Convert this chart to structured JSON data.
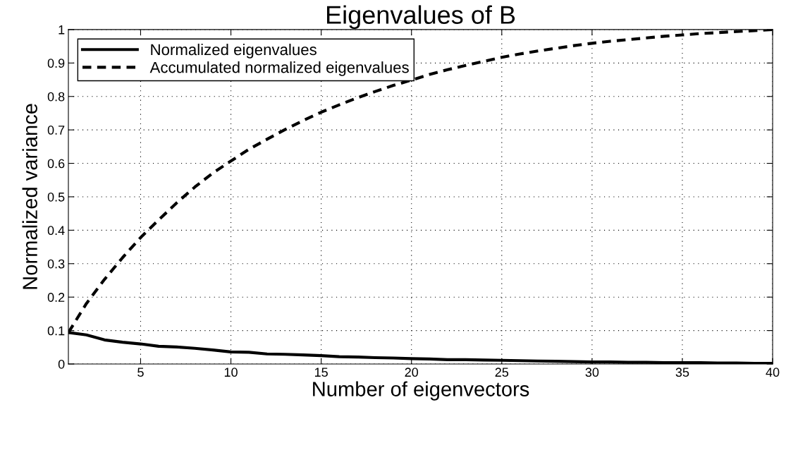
{
  "chart_data": {
    "type": "line",
    "title": "Eigenvalues of B",
    "xlabel": "Number of eigenvectors",
    "ylabel": "Normalized variance",
    "x": [
      1,
      2,
      3,
      4,
      5,
      6,
      7,
      8,
      9,
      10,
      11,
      12,
      13,
      14,
      15,
      16,
      17,
      18,
      19,
      20,
      21,
      22,
      23,
      24,
      25,
      26,
      27,
      28,
      29,
      30,
      31,
      32,
      33,
      34,
      35,
      36,
      37,
      38,
      39,
      40
    ],
    "series": [
      {
        "name": "Normalized eigenvalues",
        "color": "#000000",
        "line_style": "solid",
        "values": [
          0.094,
          0.087,
          0.072,
          0.065,
          0.06,
          0.053,
          0.051,
          0.047,
          0.042,
          0.036,
          0.035,
          0.03,
          0.029,
          0.027,
          0.025,
          0.022,
          0.021,
          0.019,
          0.018,
          0.016,
          0.015,
          0.013,
          0.013,
          0.012,
          0.011,
          0.01,
          0.009,
          0.008,
          0.007,
          0.006,
          0.006,
          0.005,
          0.005,
          0.004,
          0.004,
          0.004,
          0.003,
          0.003,
          0.002,
          0.002
        ]
      },
      {
        "name": "Accumulated normalized eigenvalues",
        "color": "#000000",
        "line_style": "dashed",
        "values": [
          0.094,
          0.181,
          0.253,
          0.318,
          0.378,
          0.431,
          0.482,
          0.529,
          0.571,
          0.607,
          0.642,
          0.672,
          0.701,
          0.728,
          0.753,
          0.775,
          0.796,
          0.815,
          0.833,
          0.849,
          0.866,
          0.88,
          0.893,
          0.905,
          0.917,
          0.927,
          0.936,
          0.944,
          0.952,
          0.959,
          0.965,
          0.97,
          0.975,
          0.98,
          0.984,
          0.988,
          0.991,
          0.994,
          0.997,
          1.0
        ]
      }
    ],
    "xlim": [
      1,
      40
    ],
    "xticks": [
      5,
      10,
      15,
      20,
      25,
      30,
      35,
      40
    ],
    "ylim": [
      0,
      1
    ],
    "yticks": [
      0,
      0.1,
      0.2,
      0.3,
      0.4,
      0.5,
      0.6,
      0.7,
      0.8,
      0.9,
      1
    ],
    "grid": true,
    "legend": "top left",
    "marker": "none"
  }
}
